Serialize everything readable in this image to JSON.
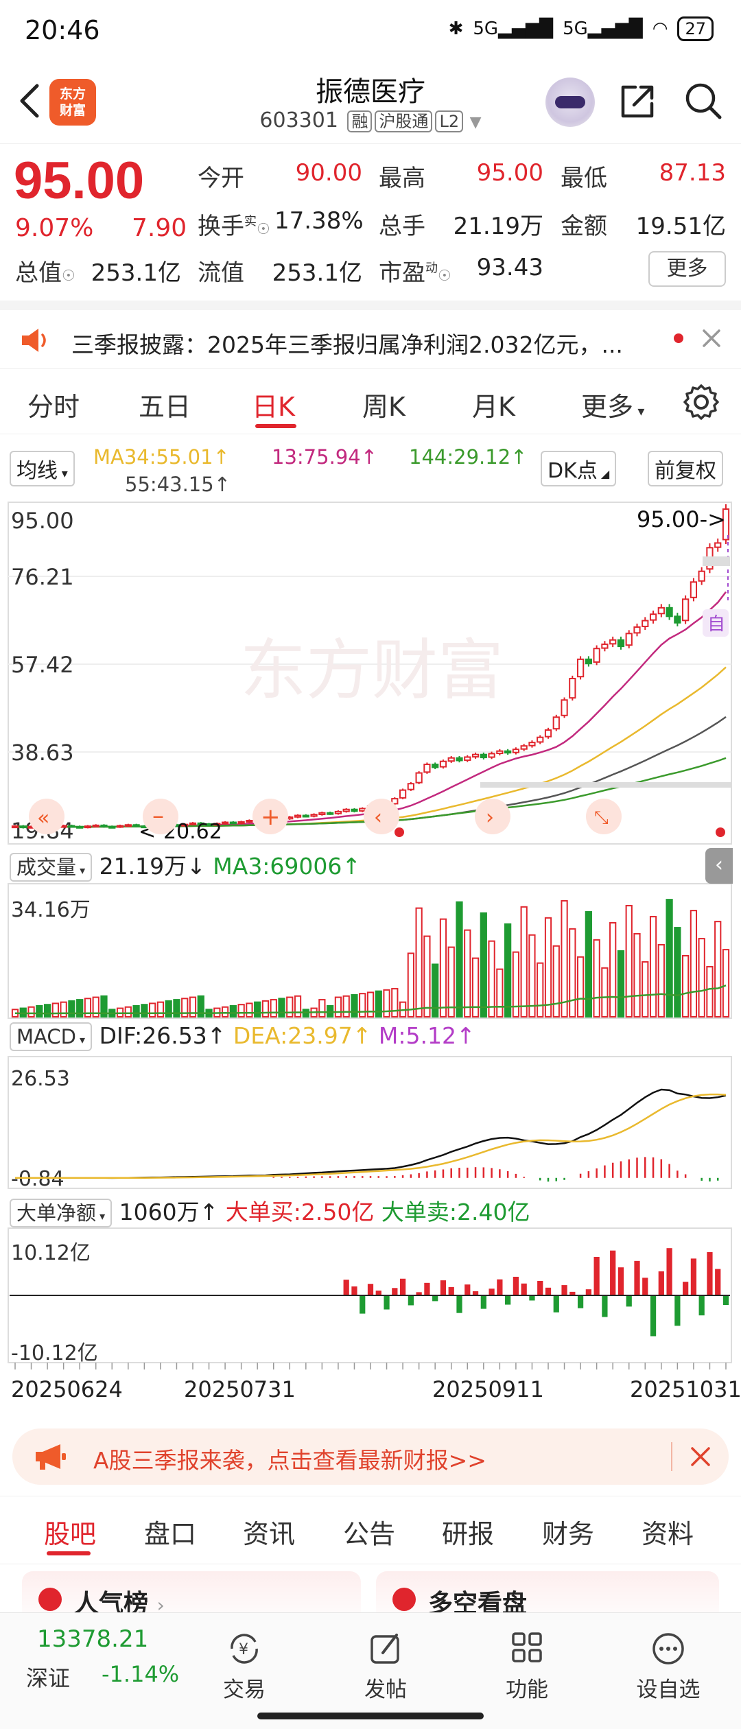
{
  "status_bar": {
    "time": "20:46",
    "signal1": "5G",
    "signal2": "5G",
    "battery": "27"
  },
  "header": {
    "stock_name": "振德医疗",
    "stock_code": "603301",
    "tags": [
      "融",
      "沪股通",
      "L2"
    ],
    "logo_line1": "东方",
    "logo_line2": "财富"
  },
  "quote": {
    "price": "95.00",
    "change_pct": "9.07%",
    "change": "7.90",
    "open_label": "今开",
    "open": "90.00",
    "high_label": "最高",
    "high": "95.00",
    "low_label": "最低",
    "low": "87.13",
    "turnover_label": "换手",
    "turnover_sup": "实",
    "turnover": "17.38%",
    "volume_label": "总手",
    "volume": "21.19万",
    "amount_label": "金额",
    "amount": "19.51亿",
    "mktcap_label": "总值",
    "mktcap": "253.1亿",
    "float_label": "流值",
    "float": "253.1亿",
    "pe_label": "市盈",
    "pe_sup": "动",
    "pe": "93.43",
    "more": "更多"
  },
  "news": {
    "text": "三季报披露：2025年三季报归属净利润2.032亿元，..."
  },
  "chart_tabs": [
    "分时",
    "五日",
    "日K",
    "周K",
    "月K",
    "更多"
  ],
  "ma_row": {
    "selector": "均线",
    "ma34": "MA34:55.01↑",
    "ma13": "13:75.94↑",
    "ma144": "144:29.12↑",
    "ma55": "55:43.15↑",
    "dk": "DK点",
    "adjust": "前复权"
  },
  "chart_data": {
    "type": "candlestick",
    "y_ticks": [
      "95.00",
      "76.21",
      "57.42",
      "38.63",
      "19.84"
    ],
    "latest_label": "95.00->",
    "low_marker": "<-20.62",
    "auto_badge": "自",
    "candles_close": [
      21.1,
      20.8,
      21.0,
      20.9,
      20.7,
      20.9,
      21.2,
      21.0,
      20.8,
      21.1,
      21.3,
      21.0,
      20.9,
      21.2,
      21.4,
      21.1,
      21.0,
      21.3,
      21.6,
      21.4,
      21.2,
      21.5,
      21.8,
      21.6,
      21.4,
      21.7,
      22.0,
      21.8,
      22.1,
      22.4,
      22.2,
      22.6,
      23.0,
      22.8,
      23.2,
      23.6,
      23.4,
      23.8,
      24.2,
      24.0,
      24.5,
      25.0,
      24.6,
      25.2,
      25.8,
      25.4,
      26.2,
      27.5,
      29.5,
      31.0,
      33.5,
      35.5,
      34.8,
      36.2,
      37.0,
      36.4,
      37.2,
      37.8,
      37.1,
      38.0,
      38.6,
      38.2,
      39.0,
      39.8,
      40.6,
      41.8,
      43.5,
      46.5,
      50.5,
      55.5,
      60.0,
      59.0,
      62.5,
      63.5,
      64.5,
      63.0,
      66.0,
      67.5,
      69.0,
      70.5,
      72.0,
      70.0,
      68.5,
      74.0,
      78.0,
      80.5,
      86.0,
      87.1,
      95.0
    ],
    "volume": {
      "label": "成交量",
      "value": "21.19万↓",
      "ma3": "MA3:69006↑",
      "max_tick": "34.16万"
    },
    "macd": {
      "label": "MACD",
      "dif": "DIF:26.53↑",
      "dea": "DEA:23.97↑",
      "m": "M:5.12↑",
      "top_tick": "26.53",
      "bottom_tick": "-0.84"
    },
    "bigorder": {
      "label": "大单净额",
      "value": "1060万↑",
      "buy": "大单买:2.50亿",
      "sell": "大单卖:2.40亿",
      "top_tick": "10.12亿",
      "bottom_tick": "-10.12亿"
    },
    "dates": [
      "20250624",
      "20250731",
      "20250911",
      "20251031"
    ]
  },
  "report_banner": {
    "text": "A股三季报来袭，点击查看最新财报>>"
  },
  "info_tabs": [
    "股吧",
    "盘口",
    "资讯",
    "公告",
    "研报",
    "财务",
    "资料"
  ],
  "cards": {
    "left": "人气榜",
    "right": "多空看盘"
  },
  "bottom_bar": {
    "index_value": "13378.21",
    "index_name": "深证",
    "index_change": "-1.14%",
    "trade": "交易",
    "post": "发帖",
    "function": "功能",
    "watchlist": "设自选"
  },
  "colors": {
    "up": "#e0252d",
    "down": "#1e9b32",
    "accent": "#ef5b2a"
  }
}
